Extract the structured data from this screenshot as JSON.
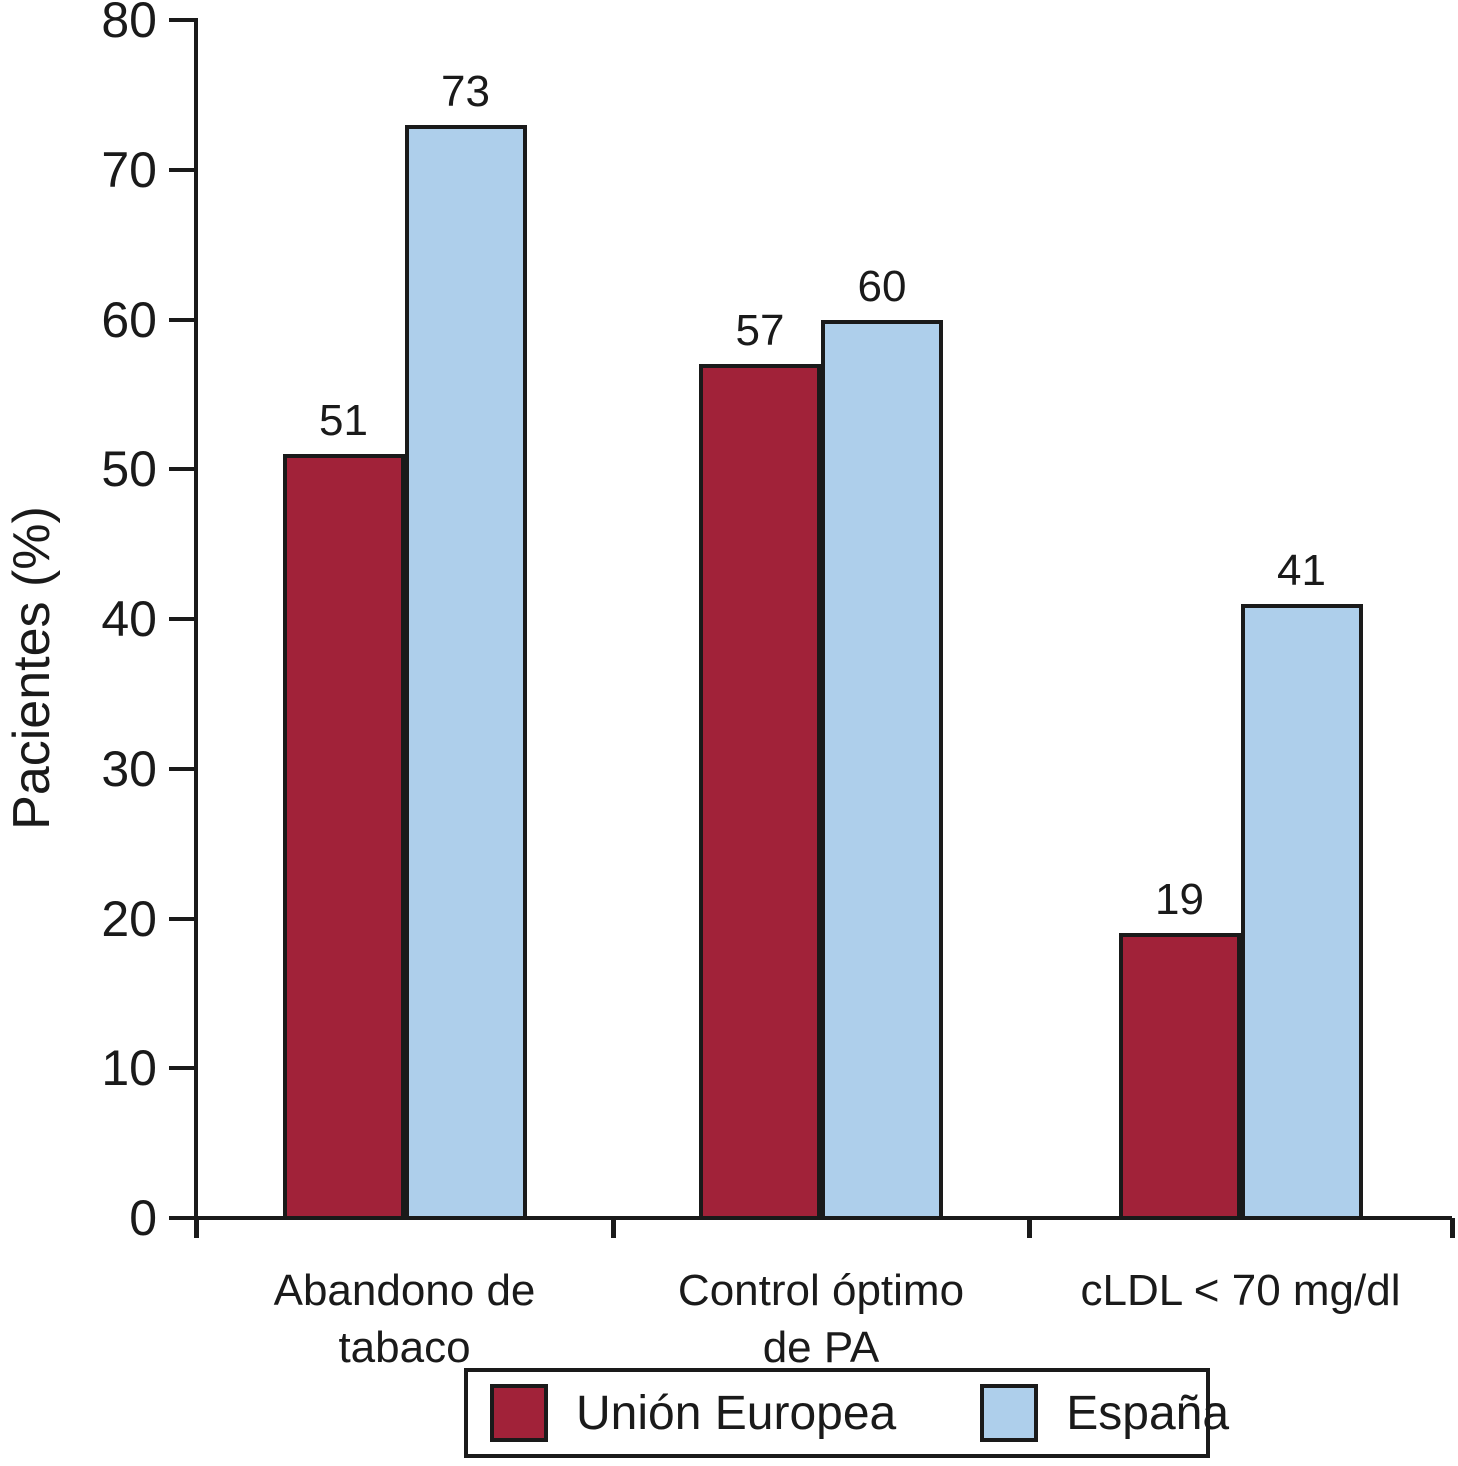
{
  "chart_data": {
    "type": "bar",
    "title": "",
    "xlabel": "",
    "ylabel": "Pacientes (%)",
    "ylim": [
      0,
      80
    ],
    "yticks": [
      0,
      10,
      20,
      30,
      40,
      50,
      60,
      70,
      80
    ],
    "grid": false,
    "legend_position": "bottom",
    "bar_value_labels_shown": true,
    "categories": [
      "Abandono de\ntabaco",
      "Control óptimo\nde PA",
      "cLDL < 70 mg/dl"
    ],
    "series": [
      {
        "name": "Unión Europea",
        "color": "#A12239",
        "values": [
          51,
          57,
          19
        ]
      },
      {
        "name": "España",
        "color": "#AECFEB",
        "values": [
          73,
          60,
          41
        ]
      }
    ]
  },
  "colors": {
    "axis": "#1a1a1a",
    "text": "#1a1a1a",
    "background": "#ffffff"
  }
}
